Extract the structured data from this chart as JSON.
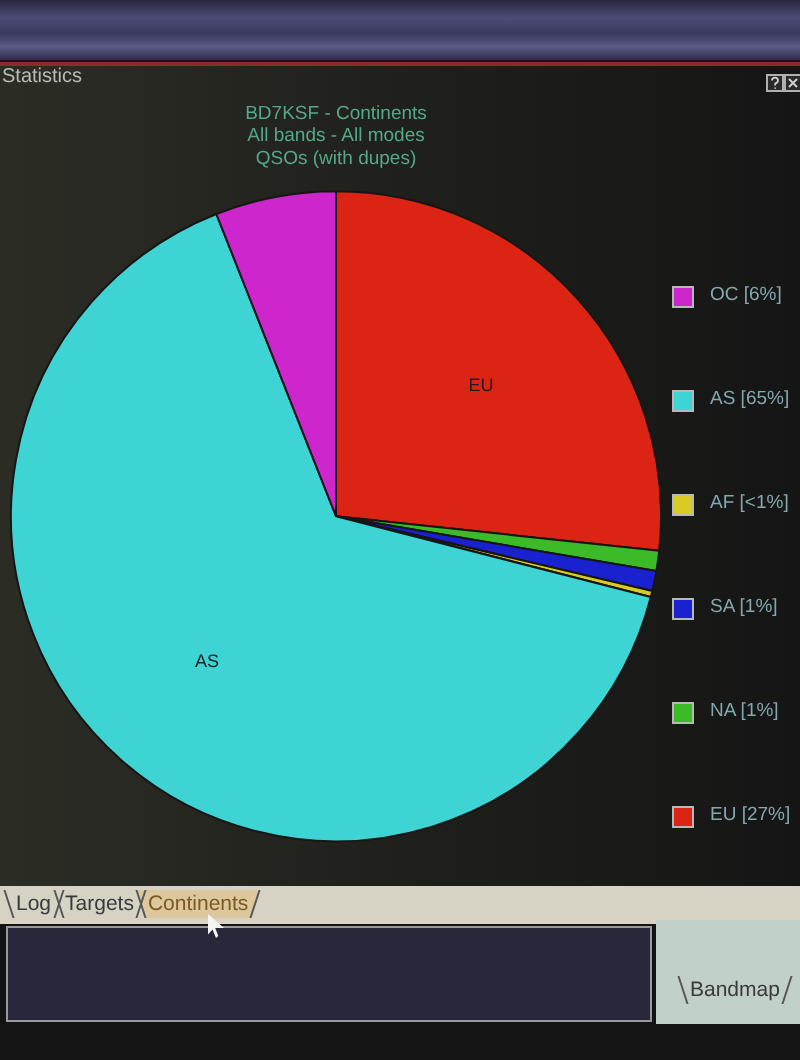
{
  "chart_data": {
    "type": "pie",
    "title": "BD7KSF - Continents",
    "subtitle": "All bands - All modes\nQSOs (with dupes)",
    "categories": [
      "EU",
      "NA",
      "SA",
      "AF",
      "AS",
      "OC"
    ],
    "values": [
      26.7,
      1,
      1,
      0.3,
      65,
      6
    ],
    "value_labels": [
      "[27%]",
      "[1%]",
      "[1%]",
      "[<1%]",
      "[65%]",
      "[6%]"
    ],
    "colors": [
      "#dc2414",
      "#3cba28",
      "#1a22d0",
      "#d8cc24",
      "#3ed4d4",
      "#cc26cc"
    ],
    "legend": "right",
    "annotations": [
      "Statistics",
      "Log",
      "Targets",
      "Continents",
      "Bandmap"
    ]
  }
}
